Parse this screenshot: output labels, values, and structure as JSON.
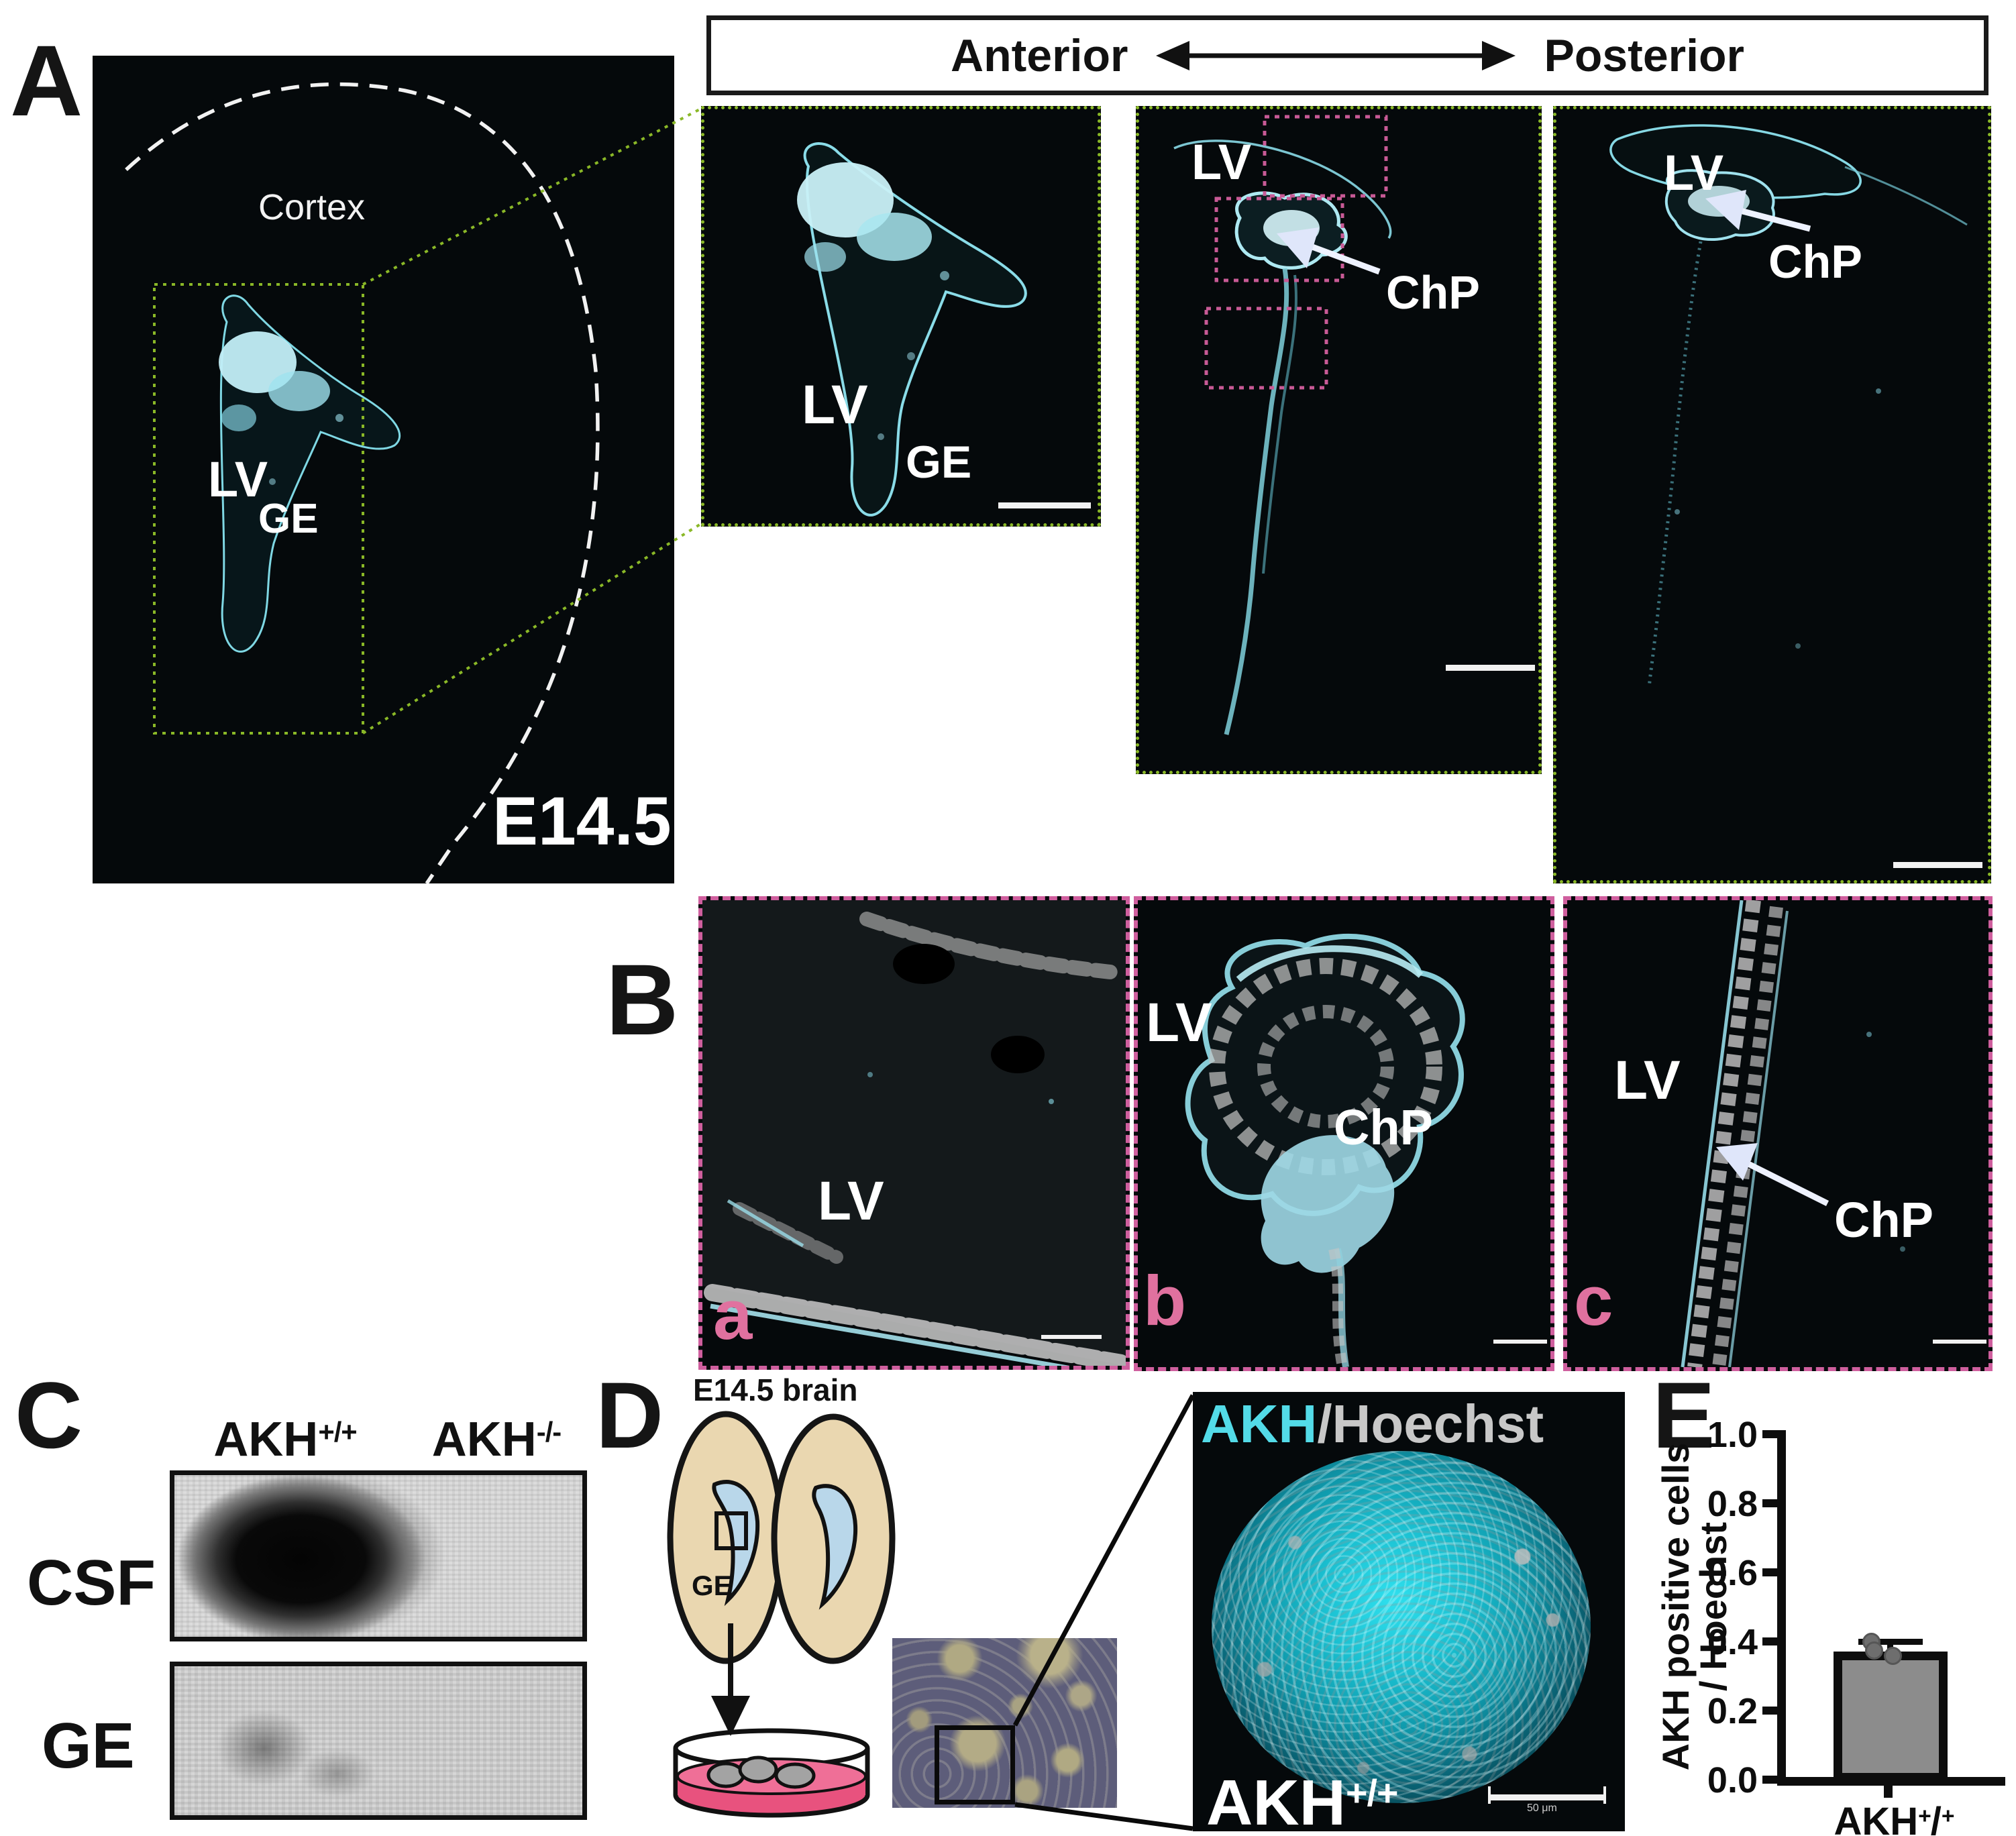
{
  "panel_a": {
    "label": "A",
    "overview": {
      "cortex": "Cortex",
      "lv": "LV",
      "ge": "GE",
      "stage": "E14.5"
    },
    "header": {
      "left": "Anterior",
      "right": "Posterior"
    },
    "zoom1": {
      "lv": "LV",
      "ge": "GE"
    },
    "zoom2": {
      "lv": "LV",
      "chp": "ChP"
    },
    "zoom3": {
      "lv": "LV",
      "chp": "ChP"
    }
  },
  "panel_b": {
    "label": "B",
    "a": {
      "letter": "a",
      "lv": "LV"
    },
    "b": {
      "letter": "b",
      "lv": "LV",
      "chp": "ChP"
    },
    "c": {
      "letter": "c",
      "lv": "LV",
      "chp": "ChP"
    }
  },
  "panel_c": {
    "label": "C",
    "columns": [
      {
        "base": "AKH",
        "sup": "+/+"
      },
      {
        "base": "AKH",
        "sup": "-/-"
      }
    ],
    "rows": [
      "CSF",
      "GE"
    ]
  },
  "panel_d": {
    "label": "D",
    "title": "E14.5 brain",
    "ge_label": "GE",
    "fluor": {
      "stain_akh": "AKH",
      "stain_hoechst": "/Hoechst",
      "genotype_base": "AKH",
      "genotype_sup": "+/+",
      "scalebar": "50 μm"
    }
  },
  "panel_e": {
    "label": "E",
    "chart_data": {
      "type": "bar",
      "categories": [
        "AKH+/+"
      ],
      "values": [
        0.37
      ],
      "error": [
        0.03
      ],
      "points": [
        0.4,
        0.375,
        0.36
      ],
      "xlabel_base": "AKH",
      "xlabel_sup1": "+",
      "xlabel_mid": "/",
      "xlabel_sup2": "+",
      "ylabel_line1": "AKH positive cells",
      "ylabel_line2": "/ Hoechst",
      "ylim": [
        0.0,
        1.0
      ],
      "yticks": [
        "1.0",
        "0.8",
        "0.6",
        "0.4",
        "0.2",
        "0.0"
      ],
      "grid": false,
      "legend": false,
      "bar_color": "#8c8c8c"
    }
  }
}
